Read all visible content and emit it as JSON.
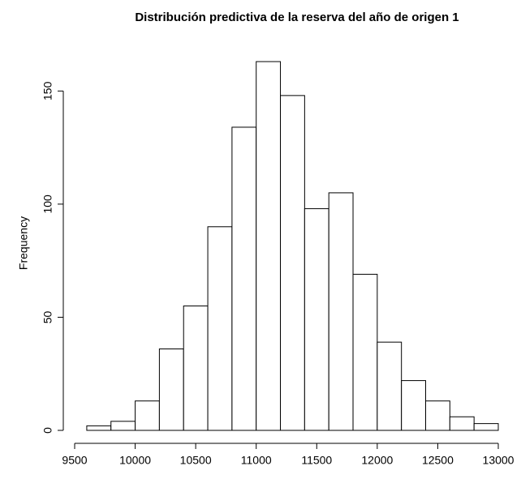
{
  "chart_data": {
    "type": "histogram",
    "title": "Distribución predictiva de la reserva del año de origen 1",
    "ylabel": "Frequency",
    "bins": [
      9600,
      9800,
      10000,
      10200,
      10400,
      10600,
      10800,
      11000,
      11200,
      11400,
      11600,
      11800,
      12000,
      12200,
      12400,
      12600,
      12800,
      13000
    ],
    "values": [
      2,
      4,
      13,
      36,
      55,
      90,
      134,
      163,
      148,
      98,
      105,
      69,
      39,
      22,
      13,
      6,
      3
    ],
    "color": "#ffffff",
    "xlim": [
      9500,
      13000
    ],
    "xticks": [
      9500,
      10000,
      10500,
      11000,
      11500,
      12000,
      12500,
      13000
    ],
    "ylim": [
      0,
      163
    ],
    "yticks": [
      0,
      50,
      100,
      150
    ]
  }
}
